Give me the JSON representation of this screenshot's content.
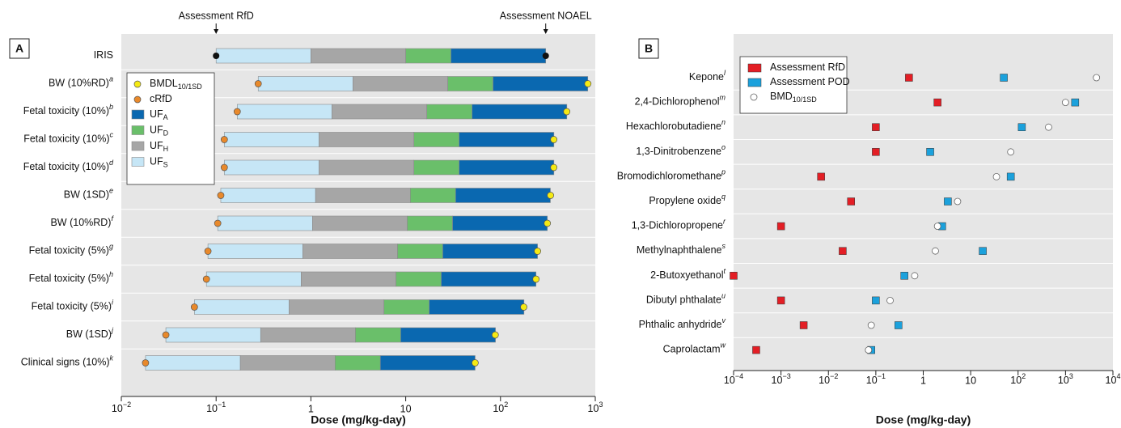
{
  "chart_data": [
    {
      "type": "range-bar",
      "panel": "A",
      "xlabel": "Dose (mg/kg-day)",
      "log_x": true,
      "xlim": [
        0.01,
        1000
      ],
      "xticks": [
        {
          "value": 0.01,
          "label": "10",
          "exponent": "−2"
        },
        {
          "value": 0.1,
          "label": "10",
          "exponent": "−1"
        },
        1,
        10,
        {
          "value": 100,
          "label": "10",
          "exponent": "2"
        },
        {
          "value": 1000,
          "label": "10",
          "exponent": "3"
        }
      ],
      "annotations": [
        {
          "text": "Assessment RfD",
          "value": 0.1
        },
        {
          "text": "Assessment NOAEL",
          "value": 300
        }
      ],
      "categories": [
        "IRIS",
        "BW (10%RD)",
        "Fetal toxicity (10%)",
        "Fetal toxicity (10%)",
        "Fetal toxicity (10%)",
        "BW (1SD)",
        "BW (10%RD)",
        "Fetal toxicity (5%)",
        "Fetal toxicity (5%)",
        "Fetal toxicity (5%)",
        "BW (1SD)",
        "Clinical signs (10%)"
      ],
      "category_notes": [
        null,
        "a",
        "b",
        "c",
        "d",
        "e",
        "f",
        "g",
        "h",
        "i",
        "j",
        "k"
      ],
      "series": [
        {
          "name": "BMDL",
          "subscript": "10/1SD",
          "color": "#f5ea14",
          "values": [
            null,
            835,
            500,
            365,
            365,
            337,
            312,
            246,
            237,
            176,
            88,
            54
          ]
        },
        {
          "name": "cRfD",
          "color": "#e8892b",
          "values": [
            null,
            0.278,
            0.167,
            0.122,
            0.122,
            0.112,
            0.104,
            0.082,
            0.079,
            0.059,
            0.0295,
            0.018
          ]
        }
      ],
      "uf_series": [
        {
          "name": "UF",
          "subscript": "A",
          "color": "#0a68b0",
          "values": [
            10,
            10,
            10,
            10,
            10,
            10,
            10,
            10,
            10,
            10,
            10,
            10
          ]
        },
        {
          "name": "UF",
          "subscript": "D",
          "color": "#6abf6a",
          "values": [
            3,
            3,
            3,
            3,
            3,
            3,
            3,
            3,
            3,
            3,
            3,
            3
          ]
        },
        {
          "name": "UF",
          "subscript": "H",
          "color": "#a6a6a6",
          "values": [
            10,
            10,
            10,
            10,
            10,
            10,
            10,
            10,
            10,
            10,
            10,
            10
          ]
        },
        {
          "name": "UF",
          "subscript": "S",
          "color": "#c6e6f6",
          "values": [
            10,
            10,
            10,
            10,
            10,
            10,
            10,
            10,
            10,
            10,
            10,
            10
          ]
        }
      ]
    },
    {
      "type": "dot",
      "panel": "B",
      "xlabel": "Dose (mg/kg-day)",
      "log_x": true,
      "xlim": [
        0.0001,
        10000
      ],
      "xticks": [
        {
          "value": 0.0001,
          "label": "10",
          "exponent": "−4"
        },
        {
          "value": 0.001,
          "label": "10",
          "exponent": "−3"
        },
        {
          "value": 0.01,
          "label": "10",
          "exponent": "−2"
        },
        {
          "value": 0.1,
          "label": "10",
          "exponent": "−1"
        },
        1,
        10,
        {
          "value": 100,
          "label": "10",
          "exponent": "2"
        },
        {
          "value": 1000,
          "label": "10",
          "exponent": "3"
        },
        {
          "value": 10000,
          "label": "10",
          "exponent": "4"
        }
      ],
      "categories": [
        "Kepone",
        "2,4-Dichlorophenol",
        "Hexachlorobutadiene",
        "1,3-Dinitrobenzene",
        "Bromodichloromethane",
        "Propylene oxide",
        "1,3-Dichloropropene",
        "Methylnaphthalene",
        "2-Butoxyethanol",
        "Dibutyl phthalate",
        "Phthalic anhydride",
        "Caprolactam"
      ],
      "category_notes": [
        "l",
        "m",
        "n",
        "o",
        "p",
        "q",
        "r",
        "s",
        "t",
        "u",
        "v",
        "w"
      ],
      "series": [
        {
          "name": "Assessment RfD",
          "color": "#e31e25",
          "marker": "square",
          "values": [
            0.5,
            2,
            0.1,
            0.1,
            0.007,
            0.03,
            0.001,
            0.02,
            0.0001,
            0.001,
            0.003,
            0.0003
          ]
        },
        {
          "name": "Assessment POD",
          "color": "#1ba1dc",
          "marker": "square",
          "values": [
            50,
            1600,
            120,
            1.4,
            70,
            3.3,
            2.5,
            18,
            0.4,
            0.1,
            0.3,
            0.08
          ]
        },
        {
          "name": "BMD",
          "subscript": "10/1SD",
          "color": "#ffffff",
          "marker": "circle",
          "values": [
            4500,
            1000,
            440,
            70,
            35,
            5.3,
            2,
            1.8,
            0.66,
            0.2,
            0.08,
            0.07
          ]
        }
      ]
    }
  ]
}
